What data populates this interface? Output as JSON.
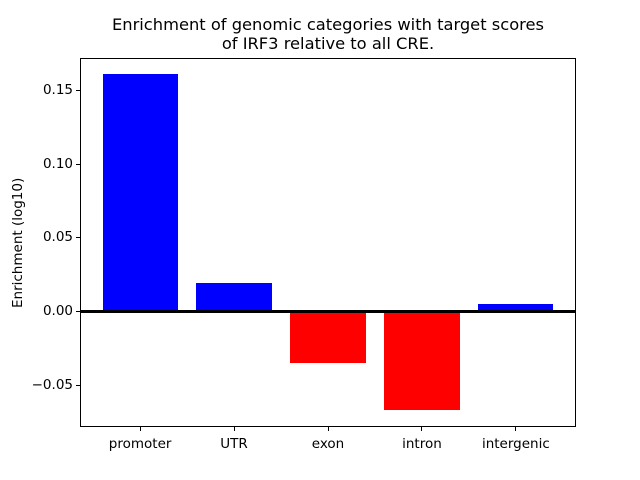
{
  "title": {
    "line1": "Enrichment of genomic categories with target scores",
    "line2": "of IRF3 relative to all CRE."
  },
  "chart_data": {
    "type": "bar",
    "title": "Enrichment of genomic categories with target scores\nof IRF3 relative to all CRE.",
    "categories": [
      "promoter",
      "UTR",
      "exon",
      "intron",
      "intergenic"
    ],
    "values": [
      0.161,
      0.019,
      -0.035,
      -0.067,
      0.005
    ],
    "bar_colors": [
      "#0000ff",
      "#0000ff",
      "#ff0000",
      "#ff0000",
      "#0000ff"
    ],
    "positive_color": "#0000ff",
    "negative_color": "#ff0000",
    "xlabel": "",
    "ylabel": "Enrichment (log10)",
    "ylim": [
      -0.0785,
      0.172
    ],
    "yticks": [
      {
        "value": 0.15,
        "label": "0.15"
      },
      {
        "value": 0.1,
        "label": "0.10"
      },
      {
        "value": 0.05,
        "label": "0.05"
      },
      {
        "value": 0.0,
        "label": "0.00"
      },
      {
        "value": -0.05,
        "label": "−0.05"
      }
    ],
    "bar_width_fraction": 0.8,
    "zero_line": true,
    "grid": false,
    "legend": false,
    "axis_color": "#000000",
    "background_color": "#ffffff",
    "text_color": "#000000"
  }
}
